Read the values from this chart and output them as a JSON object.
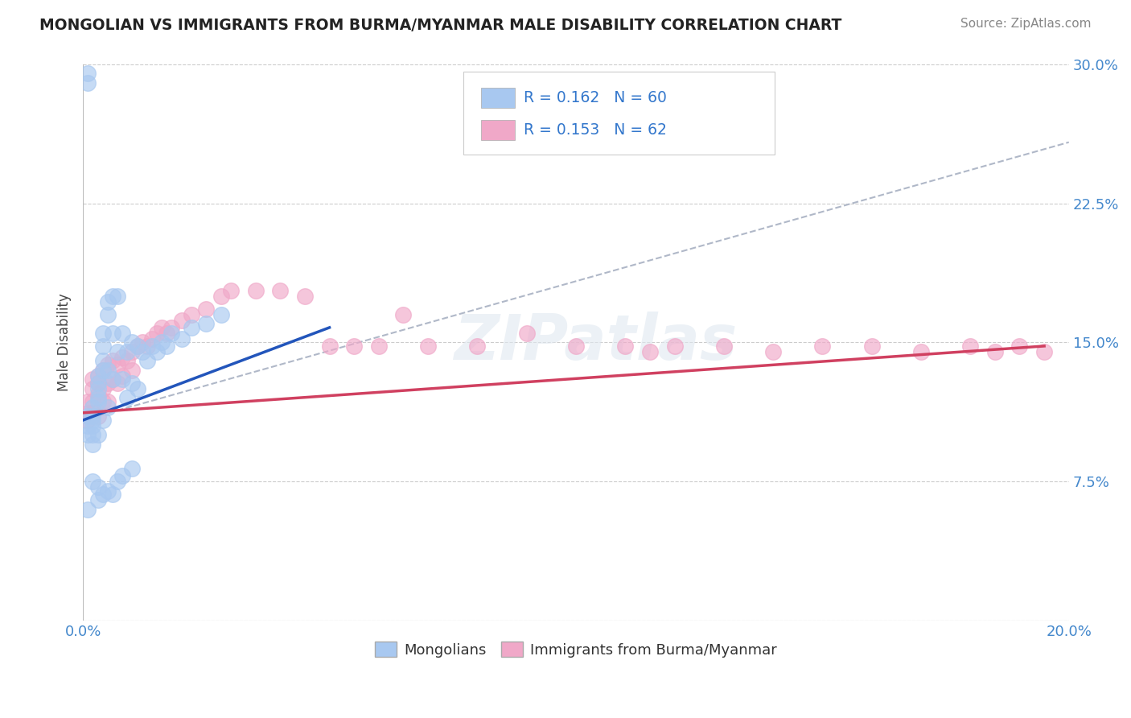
{
  "title": "MONGOLIAN VS IMMIGRANTS FROM BURMA/MYANMAR MALE DISABILITY CORRELATION CHART",
  "source": "Source: ZipAtlas.com",
  "ylabel": "Male Disability",
  "xlim": [
    0.0,
    0.2
  ],
  "ylim": [
    0.0,
    0.3
  ],
  "xtick_labels": [
    "0.0%",
    "20.0%"
  ],
  "ytick_labels": [
    "",
    "7.5%",
    "15.0%",
    "22.5%",
    "30.0%"
  ],
  "yticks": [
    0.0,
    0.075,
    0.15,
    0.225,
    0.3
  ],
  "legend_text1": "R = 0.162   N = 60",
  "legend_text2": "R = 0.153   N = 62",
  "mongolian_color": "#a8c8f0",
  "burma_color": "#f0a8c8",
  "trendline_mongolian_color": "#2255bb",
  "trendline_burma_color": "#d04060",
  "trendline_dashed_color": "#b0b8c8",
  "watermark": "ZIPatlas",
  "background_color": "#ffffff",
  "grid_color": "#cccccc",
  "mongolian_x": [
    0.001,
    0.001,
    0.001,
    0.001,
    0.001,
    0.002,
    0.002,
    0.002,
    0.002,
    0.002,
    0.002,
    0.003,
    0.003,
    0.003,
    0.003,
    0.003,
    0.003,
    0.004,
    0.004,
    0.004,
    0.004,
    0.004,
    0.005,
    0.005,
    0.005,
    0.005,
    0.006,
    0.006,
    0.006,
    0.007,
    0.007,
    0.008,
    0.008,
    0.009,
    0.009,
    0.01,
    0.01,
    0.011,
    0.011,
    0.012,
    0.013,
    0.014,
    0.015,
    0.016,
    0.017,
    0.018,
    0.02,
    0.022,
    0.025,
    0.028,
    0.001,
    0.002,
    0.003,
    0.003,
    0.004,
    0.005,
    0.006,
    0.007,
    0.008,
    0.01
  ],
  "mongolian_y": [
    0.29,
    0.295,
    0.11,
    0.105,
    0.1,
    0.115,
    0.11,
    0.108,
    0.105,
    0.1,
    0.095,
    0.132,
    0.128,
    0.125,
    0.12,
    0.118,
    0.1,
    0.155,
    0.148,
    0.14,
    0.135,
    0.108,
    0.172,
    0.165,
    0.135,
    0.115,
    0.175,
    0.155,
    0.13,
    0.175,
    0.145,
    0.155,
    0.13,
    0.145,
    0.12,
    0.15,
    0.128,
    0.148,
    0.125,
    0.145,
    0.14,
    0.148,
    0.145,
    0.15,
    0.148,
    0.155,
    0.152,
    0.158,
    0.16,
    0.165,
    0.06,
    0.075,
    0.065,
    0.072,
    0.068,
    0.07,
    0.068,
    0.075,
    0.078,
    0.082
  ],
  "burma_x": [
    0.001,
    0.001,
    0.001,
    0.002,
    0.002,
    0.002,
    0.002,
    0.003,
    0.003,
    0.003,
    0.003,
    0.004,
    0.004,
    0.004,
    0.005,
    0.005,
    0.005,
    0.006,
    0.006,
    0.007,
    0.007,
    0.008,
    0.008,
    0.009,
    0.01,
    0.01,
    0.011,
    0.012,
    0.013,
    0.014,
    0.015,
    0.016,
    0.017,
    0.018,
    0.02,
    0.022,
    0.025,
    0.028,
    0.03,
    0.035,
    0.04,
    0.045,
    0.05,
    0.055,
    0.06,
    0.065,
    0.07,
    0.08,
    0.09,
    0.1,
    0.11,
    0.115,
    0.12,
    0.13,
    0.14,
    0.15,
    0.16,
    0.17,
    0.18,
    0.185,
    0.19,
    0.195
  ],
  "burma_y": [
    0.118,
    0.112,
    0.108,
    0.13,
    0.125,
    0.118,
    0.112,
    0.132,
    0.128,
    0.122,
    0.11,
    0.135,
    0.125,
    0.118,
    0.138,
    0.128,
    0.118,
    0.14,
    0.13,
    0.138,
    0.128,
    0.142,
    0.132,
    0.14,
    0.145,
    0.135,
    0.148,
    0.15,
    0.148,
    0.152,
    0.155,
    0.158,
    0.155,
    0.158,
    0.162,
    0.165,
    0.168,
    0.175,
    0.178,
    0.178,
    0.178,
    0.175,
    0.148,
    0.148,
    0.148,
    0.165,
    0.148,
    0.148,
    0.155,
    0.148,
    0.148,
    0.145,
    0.148,
    0.148,
    0.145,
    0.148,
    0.148,
    0.145,
    0.148,
    0.145,
    0.148,
    0.145
  ],
  "trendline_mongo_x0": 0.0,
  "trendline_mongo_x1": 0.05,
  "trendline_mongo_y0": 0.108,
  "trendline_mongo_y1": 0.158,
  "trendline_dash_x0": 0.0,
  "trendline_dash_x1": 0.2,
  "trendline_dash_y0": 0.108,
  "trendline_dash_y1": 0.258,
  "trendline_burma_x0": 0.0,
  "trendline_burma_x1": 0.195,
  "trendline_burma_y0": 0.112,
  "trendline_burma_y1": 0.148
}
